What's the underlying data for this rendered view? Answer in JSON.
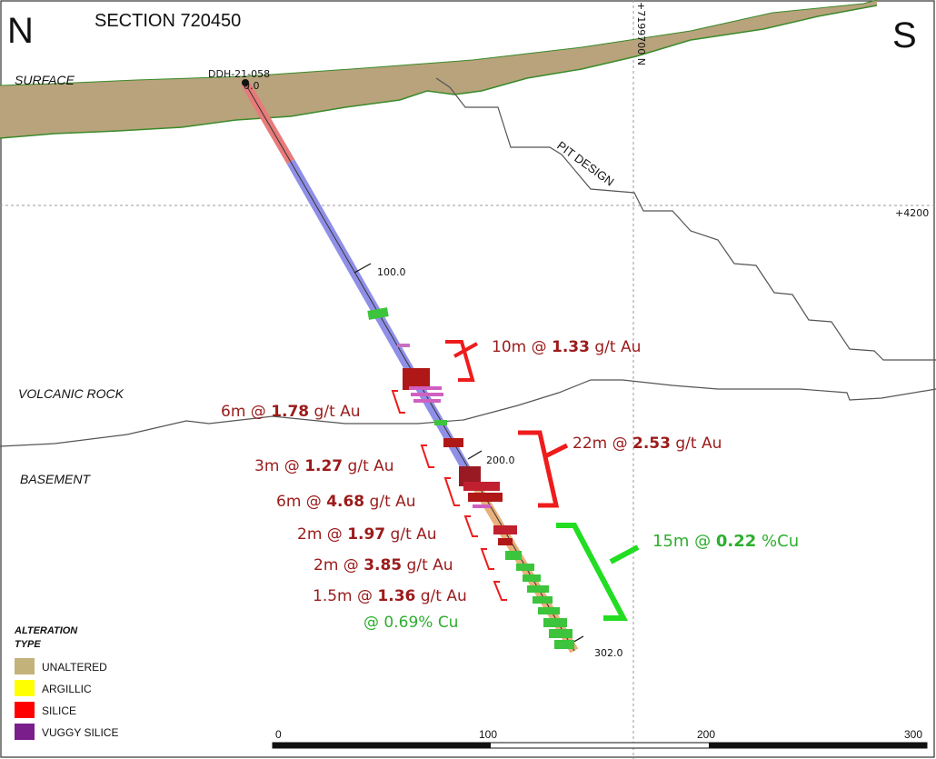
{
  "header": {
    "north": "N",
    "south": "S",
    "section_title": "SECTION 720450"
  },
  "grid": {
    "northing_label": "+7199700 N",
    "elevation_label": "+4200"
  },
  "units": {
    "surface": "SURFACE",
    "pit_design": "PIT DESIGN",
    "volcanic": "VOLCANIC ROCK",
    "basement": "BASEMENT"
  },
  "drillhole": {
    "name": "DDH-21-058",
    "depth_start": "0.0",
    "depth_100": "100.0",
    "depth_200": "200.0",
    "depth_end": "302.0"
  },
  "intervals": {
    "i1": {
      "pre": "10m @ ",
      "value": "1.33",
      "post": " g/t Au"
    },
    "i2": {
      "pre": "6m @ ",
      "value": "1.78",
      "post": " g/t Au"
    },
    "i3": {
      "pre": "22m @ ",
      "value": "2.53",
      "post": " g/t Au"
    },
    "i4": {
      "pre": "3m @ ",
      "value": "1.27",
      "post": " g/t Au"
    },
    "i5": {
      "pre": "6m @ ",
      "value": "4.68",
      "post": " g/t Au"
    },
    "i6": {
      "pre": "2m @ ",
      "value": "1.97",
      "post": " g/t Au"
    },
    "i7": {
      "pre": "2m @ ",
      "value": "3.85",
      "post": " g/t Au"
    },
    "i8": {
      "pre": "1.5m @ ",
      "value": "1.36",
      "post": " g/t Au"
    },
    "i8cu": "@ 0.69% Cu",
    "cu": {
      "pre": "15m @ ",
      "value": "0.22",
      "post": " %Cu"
    }
  },
  "legend": {
    "title_line1": "ALTERATION",
    "title_line2": "TYPE",
    "items": [
      {
        "label": "UNALTERED",
        "color": "#c3b37b"
      },
      {
        "label": "ARGILLIC",
        "color": "#ffff00"
      },
      {
        "label": "SILICE",
        "color": "#ff0000"
      },
      {
        "label": "VUGGY SILICE",
        "color": "#7a1e8c"
      }
    ]
  },
  "scale_bar": {
    "labels": [
      "0",
      "100",
      "200",
      "300"
    ]
  },
  "colors": {
    "gold_interval": "#9b1b1b",
    "gold_bracket": "#ee1c1c",
    "copper_interval": "#2eae2e",
    "copper_bracket": "#22dd22",
    "overburden": "#b8a37c",
    "hole_upper": "#e87a7a",
    "hole_middle": "#8f8fe8",
    "hole_lower": "#e8b07a"
  }
}
